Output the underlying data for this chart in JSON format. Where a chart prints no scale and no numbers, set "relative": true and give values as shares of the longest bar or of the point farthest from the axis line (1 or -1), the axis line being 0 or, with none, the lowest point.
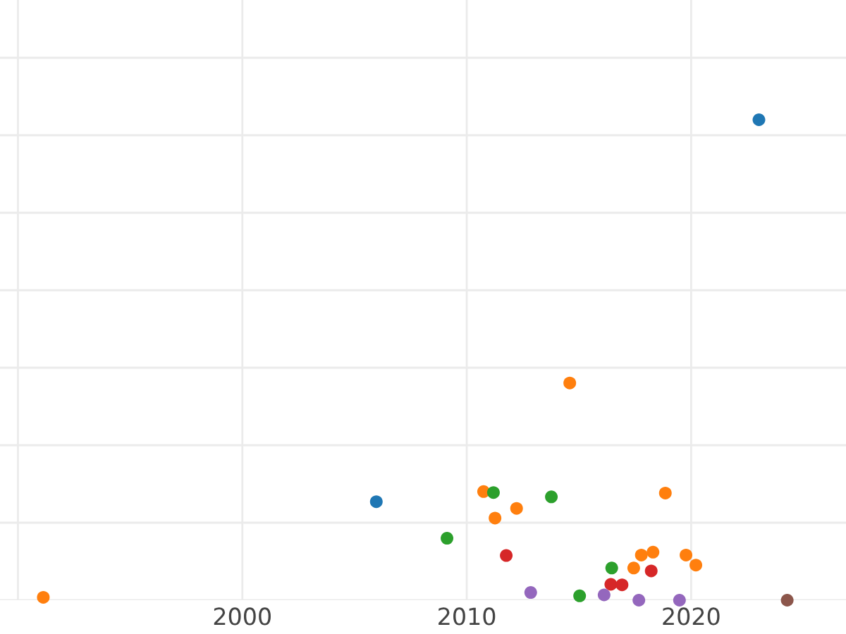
{
  "chart_data": {
    "type": "scatter",
    "relative": true,
    "grid": true,
    "legend": false,
    "marker": "circle",
    "xlim": [
      1989.2,
      2026.9
    ],
    "xticks": [
      {
        "value": 1990,
        "label": null
      },
      2000,
      2010,
      2020
    ],
    "tick_labels": "x",
    "series": [
      {
        "color": "#1f77b4",
        "x": [
          2005.97,
          2023.02
        ],
        "values": [
          0.205,
          1
        ]
      },
      {
        "color": "#ff7f0e",
        "x": [
          1991.13,
          2010.75,
          2011.26,
          2012.22,
          2014.59,
          2018.85,
          2017.44,
          2017.78,
          2018.3,
          2019.77,
          2020.21
        ],
        "values": [
          0.006,
          0.226,
          0.171,
          0.191,
          0.452,
          0.223,
          0.067,
          0.094,
          0.1,
          0.094,
          0.073
        ]
      },
      {
        "color": "#2ca02c",
        "x": [
          2009.12,
          2011.19,
          2013.77,
          2016.46,
          2015.03
        ],
        "values": [
          0.129,
          0.224,
          0.215,
          0.067,
          0.009
        ]
      },
      {
        "color": "#d62728",
        "x": [
          2011.76,
          2016.42,
          2016.92,
          2018.22
        ],
        "values": [
          0.093,
          0.033,
          0.032,
          0.061
        ]
      },
      {
        "color": "#9467bd",
        "x": [
          2012.85,
          2016.12,
          2017.67,
          2019.48
        ],
        "values": [
          0.016,
          0.011,
          0,
          0
        ]
      },
      {
        "color": "#8c564b",
        "x": [
          2024.28
        ],
        "values": [
          0
        ]
      }
    ]
  }
}
